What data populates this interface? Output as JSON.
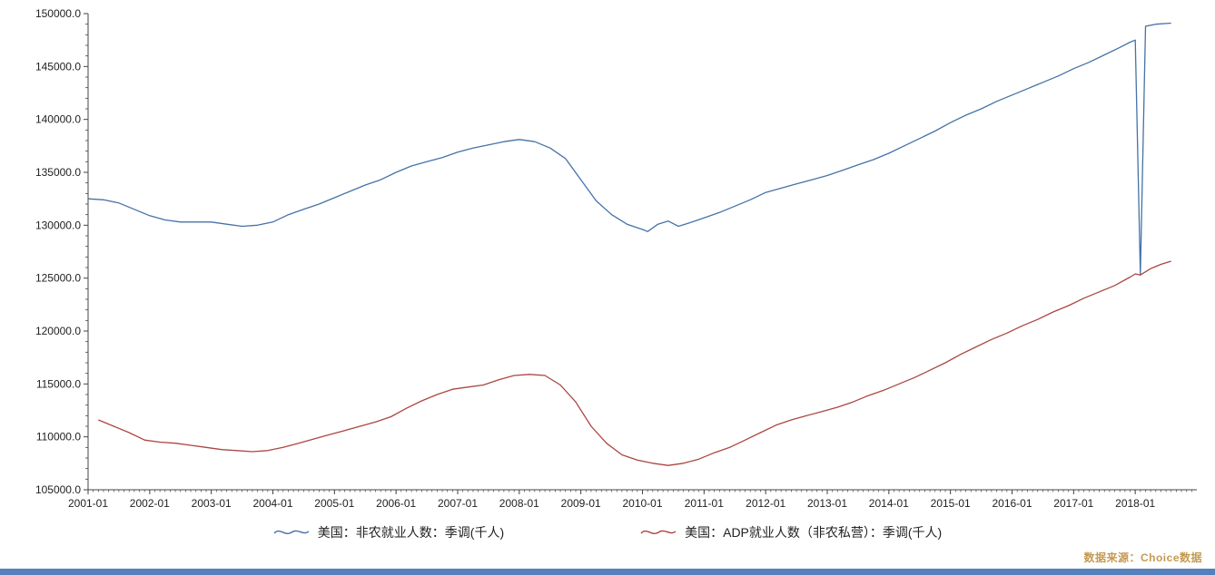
{
  "chart_data": {
    "type": "line",
    "title": "",
    "xlabel": "",
    "ylabel": "",
    "grid": false,
    "legend_position": "bottom-center",
    "ylim": [
      105000,
      150000
    ],
    "y_ticks": [
      "105000.0",
      "110000.0",
      "115000.0",
      "120000.0",
      "125000.0",
      "130000.0",
      "135000.0",
      "140000.0",
      "145000.0",
      "150000.0"
    ],
    "x_domain": [
      "2001-01",
      "2019-01"
    ],
    "x_tick_labels": [
      "2001-01",
      "2002-01",
      "2003-01",
      "2004-01",
      "2005-01",
      "2006-01",
      "2007-01",
      "2008-01",
      "2009-01",
      "2010-01",
      "2011-01",
      "2012-01",
      "2013-01",
      "2014-01",
      "2015-01",
      "2016-01",
      "2017-01",
      "2018-01"
    ],
    "series": [
      {
        "name": "美国：非农就业人数：季调(千人)",
        "color": "#4572A7",
        "points": [
          [
            "2001-01",
            132500
          ],
          [
            "2001-04",
            132400
          ],
          [
            "2001-07",
            132100
          ],
          [
            "2001-10",
            131500
          ],
          [
            "2002-01",
            130900
          ],
          [
            "2002-04",
            130500
          ],
          [
            "2002-07",
            130300
          ],
          [
            "2002-10",
            130300
          ],
          [
            "2003-01",
            130300
          ],
          [
            "2003-04",
            130100
          ],
          [
            "2003-07",
            129900
          ],
          [
            "2003-10",
            130000
          ],
          [
            "2004-01",
            130300
          ],
          [
            "2004-04",
            131000
          ],
          [
            "2004-07",
            131500
          ],
          [
            "2004-10",
            132000
          ],
          [
            "2005-01",
            132600
          ],
          [
            "2005-04",
            133200
          ],
          [
            "2005-07",
            133800
          ],
          [
            "2005-10",
            134300
          ],
          [
            "2006-01",
            135000
          ],
          [
            "2006-04",
            135600
          ],
          [
            "2006-07",
            136000
          ],
          [
            "2006-10",
            136400
          ],
          [
            "2007-01",
            136900
          ],
          [
            "2007-04",
            137300
          ],
          [
            "2007-07",
            137600
          ],
          [
            "2007-10",
            137900
          ],
          [
            "2008-01",
            138100
          ],
          [
            "2008-04",
            137900
          ],
          [
            "2008-07",
            137300
          ],
          [
            "2008-10",
            136300
          ],
          [
            "2009-01",
            134300
          ],
          [
            "2009-04",
            132300
          ],
          [
            "2009-07",
            131000
          ],
          [
            "2009-10",
            130100
          ],
          [
            "2010-01",
            129600
          ],
          [
            "2010-02",
            129400
          ],
          [
            "2010-04",
            130100
          ],
          [
            "2010-06",
            130400
          ],
          [
            "2010-08",
            129900
          ],
          [
            "2010-10",
            130200
          ],
          [
            "2011-01",
            130700
          ],
          [
            "2011-04",
            131200
          ],
          [
            "2011-07",
            131800
          ],
          [
            "2011-10",
            132400
          ],
          [
            "2012-01",
            133100
          ],
          [
            "2012-04",
            133500
          ],
          [
            "2012-07",
            133900
          ],
          [
            "2012-10",
            134300
          ],
          [
            "2013-01",
            134700
          ],
          [
            "2013-04",
            135200
          ],
          [
            "2013-07",
            135700
          ],
          [
            "2013-10",
            136200
          ],
          [
            "2014-01",
            136800
          ],
          [
            "2014-04",
            137500
          ],
          [
            "2014-07",
            138200
          ],
          [
            "2014-10",
            138900
          ],
          [
            "2015-01",
            139700
          ],
          [
            "2015-04",
            140400
          ],
          [
            "2015-07",
            141000
          ],
          [
            "2015-10",
            141700
          ],
          [
            "2016-01",
            142300
          ],
          [
            "2016-04",
            142900
          ],
          [
            "2016-07",
            143500
          ],
          [
            "2016-10",
            144100
          ],
          [
            "2017-01",
            144800
          ],
          [
            "2017-04",
            145400
          ],
          [
            "2017-07",
            146100
          ],
          [
            "2017-10",
            146800
          ],
          [
            "2017-12",
            147300
          ],
          [
            "2018-01",
            147500
          ],
          [
            "2018-02",
            125300
          ],
          [
            "2018-03",
            148800
          ],
          [
            "2018-05",
            149000
          ],
          [
            "2018-08",
            149100
          ]
        ]
      },
      {
        "name": "美国：ADP就业人数（非农私营）：季调(千人)",
        "color": "#AA4643",
        "points": [
          [
            "2001-03",
            111600
          ],
          [
            "2001-06",
            111000
          ],
          [
            "2001-09",
            110400
          ],
          [
            "2001-12",
            109700
          ],
          [
            "2002-03",
            109500
          ],
          [
            "2002-06",
            109400
          ],
          [
            "2002-09",
            109200
          ],
          [
            "2002-12",
            109000
          ],
          [
            "2003-03",
            108800
          ],
          [
            "2003-06",
            108700
          ],
          [
            "2003-09",
            108600
          ],
          [
            "2003-12",
            108700
          ],
          [
            "2004-03",
            109000
          ],
          [
            "2004-06",
            109400
          ],
          [
            "2004-09",
            109800
          ],
          [
            "2004-12",
            110200
          ],
          [
            "2005-03",
            110600
          ],
          [
            "2005-06",
            111000
          ],
          [
            "2005-09",
            111400
          ],
          [
            "2005-12",
            111900
          ],
          [
            "2006-03",
            112700
          ],
          [
            "2006-06",
            113400
          ],
          [
            "2006-09",
            114000
          ],
          [
            "2006-12",
            114500
          ],
          [
            "2007-03",
            114700
          ],
          [
            "2007-06",
            114900
          ],
          [
            "2007-09",
            115400
          ],
          [
            "2007-12",
            115800
          ],
          [
            "2008-03",
            115900
          ],
          [
            "2008-06",
            115800
          ],
          [
            "2008-09",
            114900
          ],
          [
            "2008-12",
            113300
          ],
          [
            "2009-03",
            111000
          ],
          [
            "2009-06",
            109400
          ],
          [
            "2009-09",
            108300
          ],
          [
            "2009-12",
            107800
          ],
          [
            "2010-03",
            107500
          ],
          [
            "2010-06",
            107300
          ],
          [
            "2010-09",
            107500
          ],
          [
            "2010-12",
            107900
          ],
          [
            "2011-03",
            108500
          ],
          [
            "2011-06",
            109000
          ],
          [
            "2011-09",
            109700
          ],
          [
            "2011-12",
            110400
          ],
          [
            "2012-03",
            111100
          ],
          [
            "2012-06",
            111600
          ],
          [
            "2012-09",
            112000
          ],
          [
            "2012-12",
            112400
          ],
          [
            "2013-03",
            112800
          ],
          [
            "2013-06",
            113300
          ],
          [
            "2013-09",
            113900
          ],
          [
            "2013-12",
            114400
          ],
          [
            "2014-03",
            115000
          ],
          [
            "2014-06",
            115600
          ],
          [
            "2014-09",
            116300
          ],
          [
            "2014-12",
            117000
          ],
          [
            "2015-03",
            117800
          ],
          [
            "2015-06",
            118500
          ],
          [
            "2015-09",
            119200
          ],
          [
            "2015-12",
            119800
          ],
          [
            "2016-03",
            120500
          ],
          [
            "2016-06",
            121100
          ],
          [
            "2016-09",
            121800
          ],
          [
            "2016-12",
            122400
          ],
          [
            "2017-03",
            123100
          ],
          [
            "2017-06",
            123700
          ],
          [
            "2017-09",
            124300
          ],
          [
            "2017-12",
            125100
          ],
          [
            "2018-01",
            125400
          ],
          [
            "2018-02",
            125300
          ],
          [
            "2018-04",
            125900
          ],
          [
            "2018-06",
            126300
          ],
          [
            "2018-08",
            126600
          ]
        ]
      }
    ]
  },
  "footer": {
    "source_label": "数据来源：Choice数据"
  },
  "colors": {
    "axis": "#444444",
    "tick_text": "#222222",
    "series_blue": "#4572A7",
    "series_red": "#AA4643",
    "source_text": "#C49A52",
    "bottom_bar": "#5580BB"
  }
}
